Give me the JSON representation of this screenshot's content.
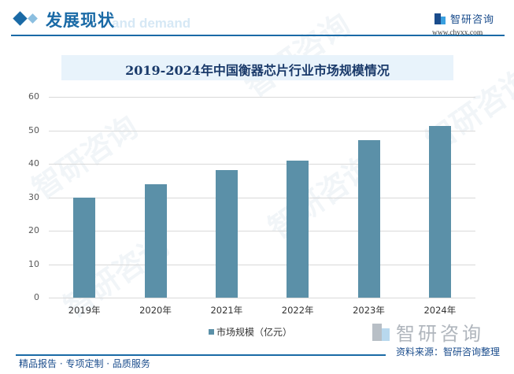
{
  "header": {
    "title": "发展现状",
    "ghost_text": "and demand"
  },
  "logo": {
    "name": "智研咨询",
    "url": "www.chyxx.com"
  },
  "watermark": "智研咨询",
  "chart_data": {
    "type": "bar",
    "title": "2019-2024年中国衡器芯片行业市场规模情况",
    "categories": [
      "2019年",
      "2020年",
      "2021年",
      "2022年",
      "2023年",
      "2024年"
    ],
    "series": [
      {
        "name": "市场规模（亿元）",
        "values": [
          30.0,
          33.8,
          38.1,
          40.9,
          47.1,
          51.3
        ],
        "color": "#5b90a8"
      }
    ],
    "xlabel": "",
    "ylabel": "",
    "ylim": [
      0,
      60
    ],
    "yticks": [
      0,
      10,
      20,
      30,
      40,
      50,
      60
    ],
    "grid": true,
    "legend_position": "bottom"
  },
  "legend": {
    "label": "市场规模（亿元）"
  },
  "source": "资料来源：智研咨询整理",
  "footer": "精品报告 · 专项定制 · 品质服务"
}
